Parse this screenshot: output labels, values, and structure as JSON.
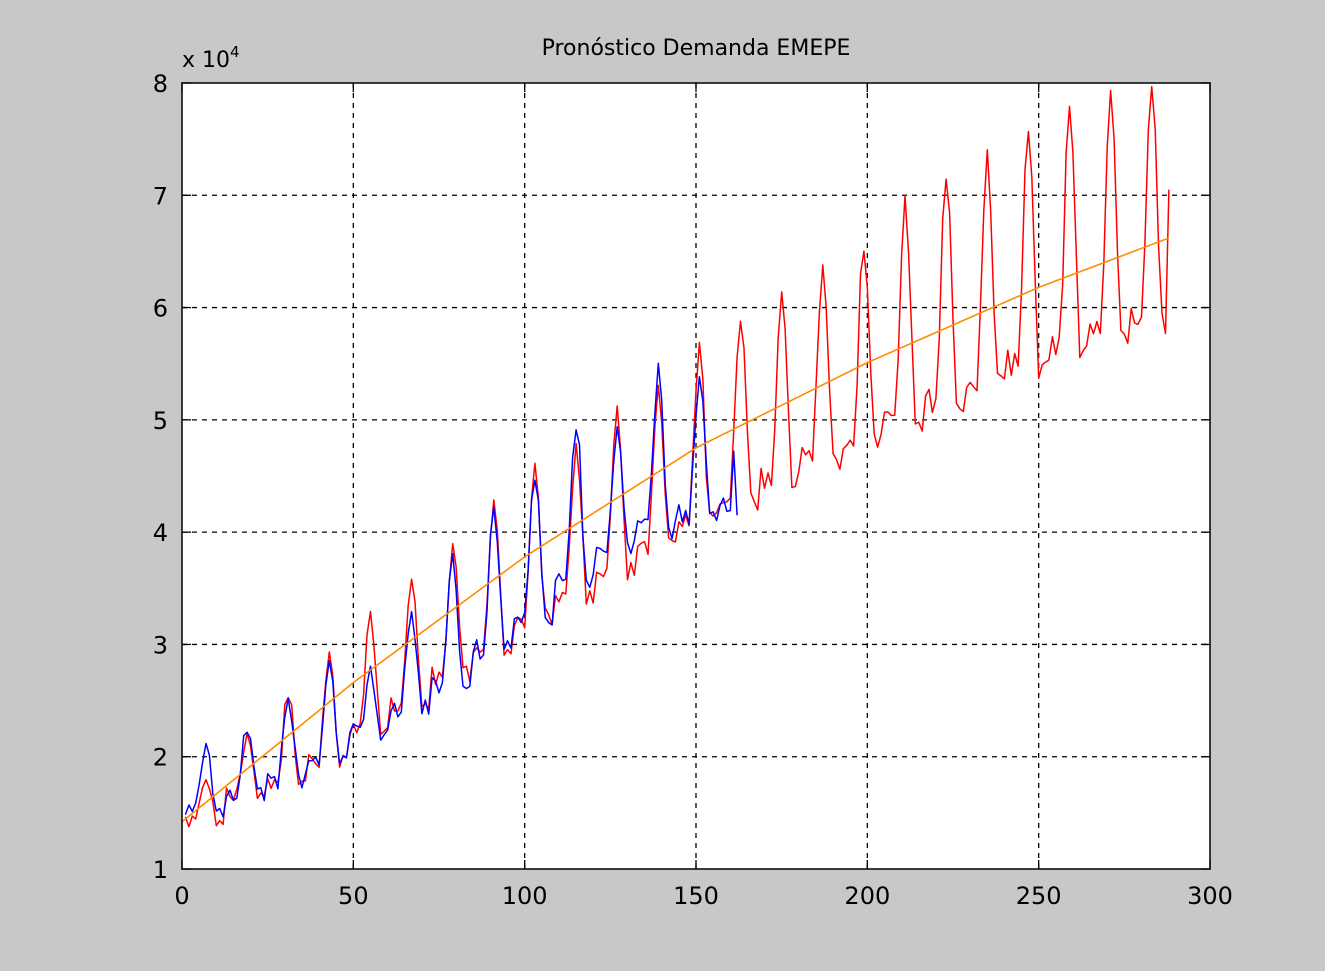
{
  "chart_data": {
    "type": "line",
    "title": "Pronóstico Demanda EMEPE",
    "y_multiplier": "x 10",
    "y_multiplier_exponent": "4",
    "xlabel": "",
    "ylabel": "",
    "xlim": [
      0,
      300
    ],
    "ylim": [
      1,
      8
    ],
    "x_ticks": [
      0,
      50,
      100,
      150,
      200,
      250,
      300
    ],
    "y_ticks": [
      1,
      2,
      3,
      4,
      5,
      6,
      7,
      8
    ],
    "x_tick_labels": [
      "0",
      "50",
      "100",
      "150",
      "200",
      "250",
      "300"
    ],
    "y_tick_labels": [
      "1",
      "2",
      "3",
      "4",
      "5",
      "6",
      "7",
      "8"
    ],
    "grid": true,
    "grid_style": "dashed",
    "period": 12,
    "series": [
      {
        "color": "#ff0000",
        "x_start": 1,
        "x_end": 288,
        "peak_values": [
          1.78,
          2.22,
          2.55,
          2.92,
          3.22,
          3.55,
          3.88,
          4.22,
          4.55,
          4.75,
          5.08,
          5.28,
          5.62,
          5.88,
          6.12,
          6.35,
          6.55,
          6.98,
          7.15,
          7.35,
          7.52,
          7.68,
          7.82,
          7.95,
          8.0
        ],
        "trough_values": [
          1.38,
          1.62,
          1.72,
          1.88,
          2.18,
          2.38,
          2.62,
          2.85,
          3.12,
          3.32,
          3.55,
          3.75,
          3.95,
          4.15,
          4.35,
          4.52,
          4.68,
          4.82,
          4.98,
          5.18,
          5.32,
          5.48,
          5.58,
          5.72,
          5.82
        ],
        "end_value": 7.05
      },
      {
        "color": "#0000ff",
        "x_start": 1,
        "x_end": 162,
        "peak_values": [
          2.12,
          2.25,
          2.52,
          2.88,
          2.78,
          3.28,
          3.78,
          4.18,
          4.52,
          5.0,
          4.95,
          5.42,
          5.32,
          5.55
        ],
        "trough_values": [
          1.48,
          1.62,
          1.72,
          1.85,
          2.18,
          2.35,
          2.55,
          2.85,
          3.15,
          3.45,
          3.75,
          3.9,
          4.05,
          4.15
        ],
        "end_value": 4.15
      },
      {
        "color": "#ff8c00",
        "x_start": 0,
        "x_end": 288,
        "trend_points": [
          [
            0,
            1.42
          ],
          [
            50,
            2.66
          ],
          [
            100,
            3.78
          ],
          [
            150,
            4.75
          ],
          [
            200,
            5.51
          ],
          [
            250,
            6.18
          ],
          [
            288,
            6.62
          ]
        ]
      }
    ]
  }
}
